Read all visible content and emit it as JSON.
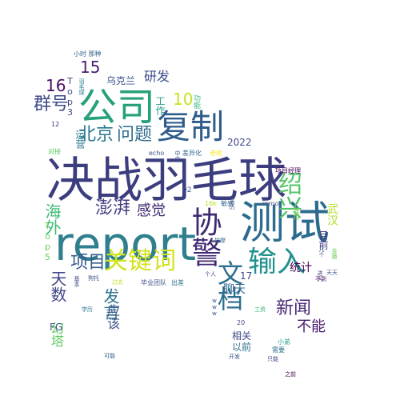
{
  "words": [
    {
      "id": "w-juezhan",
      "text": "决战羽毛球",
      "weight": 60,
      "color": "#3b3d7e"
    },
    {
      "id": "w-report",
      "text": "report",
      "weight": 58,
      "color": "#2f7f8e"
    },
    {
      "id": "w-ceshi",
      "text": "测试",
      "weight": 56,
      "color": "#2b6b8e"
    },
    {
      "id": "w-gongsi",
      "text": "公司",
      "weight": 48,
      "color": "#27a07c"
    },
    {
      "id": "w-fuzhi",
      "text": "复制",
      "weight": 42,
      "color": "#2e5c8b"
    },
    {
      "id": "w-xiejing",
      "text": "协警",
      "weight": 38,
      "color": "#3f2a72"
    },
    {
      "id": "w-shuru",
      "text": "输入",
      "weight": 36,
      "color": "#21918c"
    },
    {
      "id": "w-wendang",
      "text": "文档",
      "weight": 32,
      "color": "#2d6e8e"
    },
    {
      "id": "w-guanjianci",
      "text": "关键词",
      "weight": 30,
      "color": "#d2e21b"
    },
    {
      "id": "w-shaoxing",
      "text": "绍兴",
      "weight": 30,
      "color": "#54c568"
    },
    {
      "id": "w-beijing",
      "text": "北京",
      "weight": 22,
      "color": "#2a788e"
    },
    {
      "id": "w-wenti",
      "text": "问题",
      "weight": 22,
      "color": "#2f6c8e"
    },
    {
      "id": "w-qunhao",
      "text": "群号",
      "weight": 22,
      "color": "#3e4a89"
    },
    {
      "id": "w-pengpai",
      "text": "澎湃",
      "weight": 22,
      "color": "#433e85"
    },
    {
      "id": "w-xiangmu",
      "text": "项目",
      "weight": 22,
      "color": "#365c8d"
    },
    {
      "id": "w-xinwen",
      "text": "新闻",
      "weight": 22,
      "color": "#482878"
    },
    {
      "id": "w-haiwai",
      "text": "海外",
      "weight": 20,
      "color": "#3bbb75"
    },
    {
      "id": "w-tianshu",
      "text": "天数",
      "weight": 20,
      "color": "#404688"
    },
    {
      "id": "w-fayan",
      "text": "发言",
      "weight": 20,
      "color": "#2c728e"
    },
    {
      "id": "w-15",
      "text": "15",
      "weight": 20,
      "color": "#481d6f"
    },
    {
      "id": "w-16",
      "text": "16",
      "weight": 20,
      "color": "#471063"
    },
    {
      "id": "w-10",
      "text": "10",
      "weight": 20,
      "color": "#c8e020"
    },
    {
      "id": "w-ganjue",
      "text": "感觉",
      "weight": 18,
      "color": "#3f2a72"
    },
    {
      "id": "w-buneng",
      "text": "不能",
      "weight": 18,
      "color": "#481a6c"
    },
    {
      "id": "w-yanfa",
      "text": "研发",
      "weight": 16,
      "color": "#3d4d8a"
    },
    {
      "id": "w-yinggai",
      "text": "应该",
      "weight": 16,
      "color": "#39568c"
    },
    {
      "id": "w-huanta",
      "text": "幻塔",
      "weight": 16,
      "color": "#5ec962"
    },
    {
      "id": "w-liaotian",
      "text": "聊天",
      "weight": 14,
      "color": "#31688e"
    },
    {
      "id": "w-tongji",
      "text": "统计",
      "weight": 14,
      "color": "#440154"
    },
    {
      "id": "w-wuhan",
      "text": "武汉",
      "weight": 14,
      "color": "#b5de2b"
    },
    {
      "id": "w-wukelan",
      "text": "乌克兰",
      "weight": 12,
      "color": "#3b528b"
    },
    {
      "id": "w-2022",
      "text": "2022",
      "weight": 12,
      "color": "#3e4989"
    },
    {
      "id": "w-yunying",
      "text": "运营",
      "weight": 12,
      "color": "#2a788e"
    },
    {
      "id": "w-gongzuo",
      "text": "工作",
      "weight": 12,
      "color": "#1f9e89"
    },
    {
      "id": "w-xiangguan",
      "text": "相关",
      "weight": 12,
      "color": "#3e4a89"
    },
    {
      "id": "w-yiqian",
      "text": "以前",
      "weight": 12,
      "color": "#2c728e"
    },
    {
      "id": "w-mubian",
      "text": "目前",
      "weight": 12,
      "color": "#443983"
    },
    {
      "id": "w-fg",
      "text": "FG",
      "weight": 12,
      "color": "#3b528b"
    },
    {
      "id": "w-17",
      "text": "17",
      "weight": 12,
      "color": "#3f4788"
    },
    {
      "id": "w-top5",
      "text": "Top5",
      "weight": 11,
      "color": "#6ccd5a"
    },
    {
      "id": "w-top3",
      "text": "Top3",
      "weight": 11,
      "color": "#3e4a89"
    },
    {
      "id": "w-gongneng",
      "text": "功能",
      "weight": 9,
      "color": "#35b779"
    },
    {
      "id": "w-xiangmujingli",
      "text": "项目经理",
      "weight": 8,
      "color": "#440154"
    },
    {
      "id": "w-02",
      "text": "02",
      "weight": 9,
      "color": "#3b528b"
    },
    {
      "id": "w-mmo",
      "text": "mmo",
      "weight": 8,
      "color": "#5b5b8a"
    },
    {
      "id": "w-mingan",
      "text": "敏感",
      "weight": 8,
      "color": "#31688e"
    },
    {
      "id": "w-16k",
      "text": "16k",
      "weight": 8,
      "color": "#b8de29"
    },
    {
      "id": "w-wote",
      "text": "我特",
      "weight": 8,
      "color": "#7ad151"
    },
    {
      "id": "w-echo",
      "text": "echo",
      "weight": 8,
      "color": "#3b528b"
    },
    {
      "id": "w-chayihua",
      "text": "差异化",
      "weight": 8,
      "color": "#31688e"
    },
    {
      "id": "w-laoshou",
      "text": "老收",
      "weight": 8,
      "color": "#fde725"
    },
    {
      "id": "w-duijie",
      "text": "对接",
      "weight": 8,
      "color": "#5ec962"
    },
    {
      "id": "w-12",
      "text": "12",
      "weight": 8,
      "color": "#46327e"
    },
    {
      "id": "w-xiaoshi",
      "text": "小时 那种",
      "weight": 8,
      "color": "#35608d"
    },
    {
      "id": "w-yumaoqiu",
      "text": "羽毛球",
      "weight": 7,
      "color": "#26828e"
    },
    {
      "id": "w-zhongxian",
      "text": "中央",
      "weight": 7,
      "color": "#3b528b"
    },
    {
      "id": "w-jinbo",
      "text": "金播",
      "weight": 7,
      "color": "#6ece58"
    },
    {
      "id": "w-xiaodi",
      "text": "小弟",
      "weight": 8,
      "color": "#1f9e89"
    },
    {
      "id": "w-xuyao",
      "text": "需要",
      "weight": 8,
      "color": "#2c728e"
    },
    {
      "id": "w-zhineng",
      "text": "只能",
      "weight": 7,
      "color": "#3e4a89"
    },
    {
      "id": "w-kaifa",
      "text": "开发",
      "weight": 7,
      "color": "#3b528b"
    },
    {
      "id": "w-zhiqian",
      "text": "之前",
      "weight": 7,
      "color": "#440154"
    },
    {
      "id": "w-20",
      "text": "20",
      "weight": 8,
      "color": "#3f4788"
    },
    {
      "id": "w-gongzi",
      "text": "工资",
      "weight": 7,
      "color": "#35b779"
    },
    {
      "id": "w-keneng",
      "text": "可能",
      "weight": 7,
      "color": "#35608d"
    },
    {
      "id": "w-xueli",
      "text": "学历",
      "weight": 7,
      "color": "#2a788e"
    },
    {
      "id": "w-guoqu",
      "text": "过去",
      "weight": 7,
      "color": "#bddf26"
    },
    {
      "id": "w-jiben",
      "text": "基本",
      "weight": 7,
      "color": "#3e4a89"
    },
    {
      "id": "w-gouhuo",
      "text": "狗托",
      "weight": 7,
      "color": "#3b528b"
    },
    {
      "id": "w-biye",
      "text": "毕业",
      "weight": 8,
      "color": "#3e4a89"
    },
    {
      "id": "w-tuandui",
      "text": "团队",
      "weight": 8,
      "color": "#3b528b"
    },
    {
      "id": "w-chucha",
      "text": "出差",
      "weight": 8,
      "color": "#2c728e"
    },
    {
      "id": "w-geren",
      "text": "个人",
      "weight": 7,
      "color": "#3e4a89"
    },
    {
      "id": "w-www",
      "text": "www",
      "weight": 7,
      "color": "#3b528b"
    },
    {
      "id": "w-budao",
      "text": "不到",
      "weight": 7,
      "color": "#440154"
    },
    {
      "id": "w-tiantian",
      "text": "天天",
      "weight": 7,
      "color": "#3b528b"
    },
    {
      "id": "w-anzhao",
      "text": "按摩",
      "weight": 7,
      "color": "#31688e"
    },
    {
      "id": "w-qinzi",
      "text": "亲历",
      "weight": 7,
      "color": "#3b528b"
    },
    {
      "id": "w-jinru",
      "text": "进入",
      "weight": 7,
      "color": "#433e85"
    },
    {
      "id": "w-gefen",
      "text": "几个",
      "weight": 7,
      "color": "#3b528b"
    }
  ]
}
